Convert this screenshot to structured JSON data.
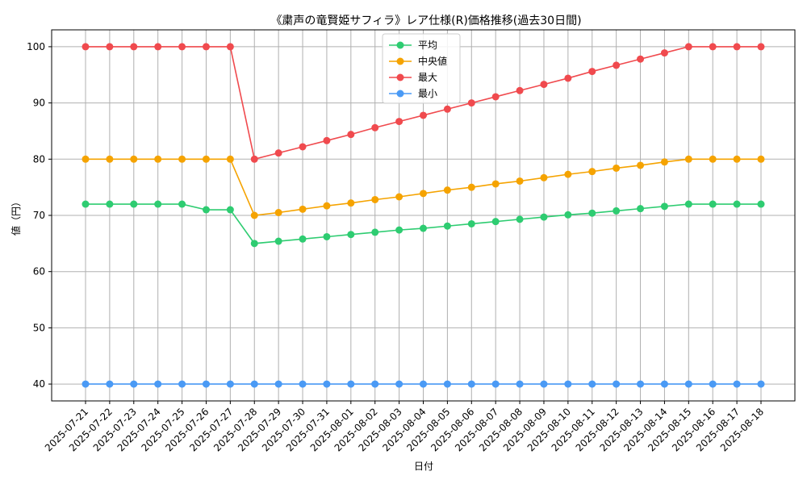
{
  "chart_data": {
    "type": "line",
    "title": "《粛声の竜賢姫サフィラ》レア仕様(R)価格推移(過去30日間)",
    "xlabel": "日付",
    "ylabel": "値（円）",
    "ylim": [
      37,
      103
    ],
    "yticks": [
      40,
      50,
      60,
      70,
      80,
      90,
      100
    ],
    "grid": true,
    "legend_position": "top-center",
    "categories": [
      "2025-07-21",
      "2025-07-22",
      "2025-07-23",
      "2025-07-24",
      "2025-07-25",
      "2025-07-26",
      "2025-07-27",
      "2025-07-28",
      "2025-07-29",
      "2025-07-30",
      "2025-07-31",
      "2025-08-01",
      "2025-08-02",
      "2025-08-03",
      "2025-08-04",
      "2025-08-05",
      "2025-08-06",
      "2025-08-07",
      "2025-08-08",
      "2025-08-09",
      "2025-08-10",
      "2025-08-11",
      "2025-08-12",
      "2025-08-13",
      "2025-08-14",
      "2025-08-15",
      "2025-08-16",
      "2025-08-17",
      "2025-08-18"
    ],
    "series": [
      {
        "name": "平均",
        "color": "#2ecc71",
        "values": [
          72,
          72,
          72,
          72,
          72,
          71,
          71,
          65,
          65.4,
          65.8,
          66.2,
          66.6,
          67,
          67.4,
          67.7,
          68.1,
          68.5,
          68.9,
          69.3,
          69.7,
          70.1,
          70.4,
          70.8,
          71.2,
          71.6,
          72,
          72,
          72,
          72
        ]
      },
      {
        "name": "中央値",
        "color": "#f5a300",
        "values": [
          80,
          80,
          80,
          80,
          80,
          80,
          80,
          70,
          70.5,
          71.1,
          71.7,
          72.2,
          72.8,
          73.3,
          73.9,
          74.5,
          75,
          75.6,
          76.1,
          76.7,
          77.3,
          77.8,
          78.4,
          78.9,
          79.5,
          80,
          80,
          80,
          80
        ]
      },
      {
        "name": "最大",
        "color": "#f04a4e",
        "values": [
          100,
          100,
          100,
          100,
          100,
          100,
          100,
          80,
          81.1,
          82.2,
          83.3,
          84.4,
          85.6,
          86.7,
          87.8,
          88.9,
          90,
          91.1,
          92.2,
          93.3,
          94.4,
          95.6,
          96.7,
          97.8,
          98.9,
          100,
          100,
          100,
          100
        ]
      },
      {
        "name": "最小",
        "color": "#4a9af5",
        "values": [
          40,
          40,
          40,
          40,
          40,
          40,
          40,
          40,
          40,
          40,
          40,
          40,
          40,
          40,
          40,
          40,
          40,
          40,
          40,
          40,
          40,
          40,
          40,
          40,
          40,
          40,
          40,
          40,
          40
        ]
      }
    ]
  }
}
